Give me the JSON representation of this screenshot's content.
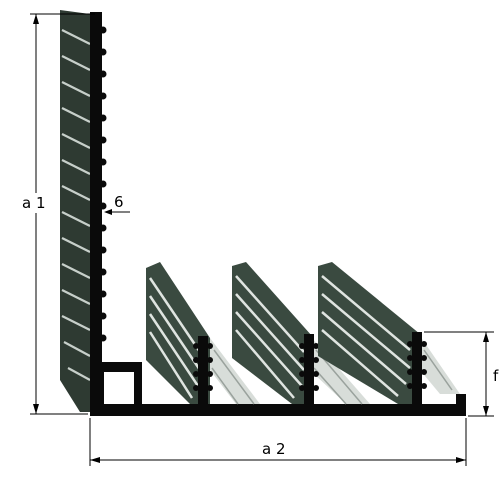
{
  "diagram": {
    "labels": {
      "height_total": "a 1",
      "wall_thickness": "6",
      "base_width": "a 2",
      "fin_height": "f"
    },
    "colors": {
      "profile_black": "#0a0a0a",
      "wall_dark": "#2e3a32",
      "wall_stripe": "#bfc8c2",
      "fin_dark": "#3a4a40",
      "fin_light": "#d8ddd9",
      "dim_line": "#000000"
    }
  }
}
